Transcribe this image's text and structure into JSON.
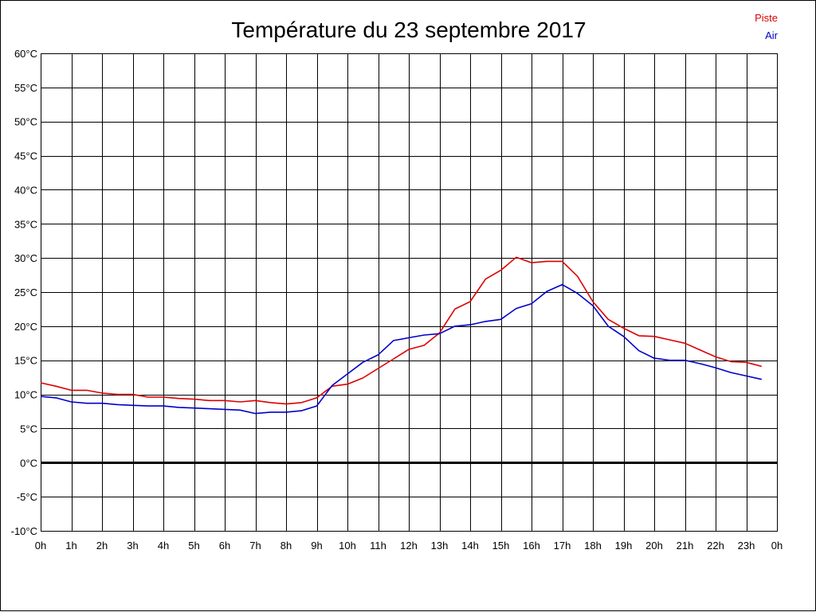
{
  "chart_data": {
    "type": "line",
    "title": "Température du 23 septembre 2017",
    "xlabel": "",
    "ylabel": "",
    "x_tick_labels": [
      "0h",
      "1h",
      "2h",
      "3h",
      "4h",
      "5h",
      "6h",
      "7h",
      "8h",
      "9h",
      "10h",
      "11h",
      "12h",
      "13h",
      "14h",
      "15h",
      "16h",
      "17h",
      "18h",
      "19h",
      "20h",
      "21h",
      "22h",
      "23h",
      "0h"
    ],
    "y_tick_labels": [
      "60°C",
      "55°C",
      "50°C",
      "45°C",
      "40°C",
      "35°C",
      "30°C",
      "25°C",
      "20°C",
      "15°C",
      "10°C",
      "5°C",
      "0°C",
      "-5°C",
      "-10°C"
    ],
    "xlim": [
      0,
      24
    ],
    "ylim": [
      -10,
      60
    ],
    "grid": true,
    "zero_line": true,
    "legend_position": "top-right",
    "x": [
      0,
      0.5,
      1,
      1.5,
      2,
      2.5,
      3,
      3.5,
      4,
      4.5,
      5,
      5.5,
      6,
      6.5,
      7,
      7.5,
      8,
      8.5,
      9,
      9.5,
      10,
      10.5,
      11,
      11.5,
      12,
      12.5,
      13,
      13.5,
      14,
      14.5,
      15,
      15.5,
      16,
      16.5,
      17,
      17.5,
      18,
      18.5,
      19,
      19.5,
      20,
      20.5,
      21,
      21.5,
      22,
      22.5,
      23,
      23.5
    ],
    "series": [
      {
        "name": "Piste",
        "color": "#dd0000",
        "values": [
          11.7,
          11.2,
          10.6,
          10.6,
          10.2,
          10.0,
          10.0,
          9.6,
          9.6,
          9.4,
          9.3,
          9.1,
          9.1,
          8.9,
          9.1,
          8.8,
          8.6,
          8.8,
          9.5,
          11.2,
          11.5,
          12.4,
          13.8,
          15.2,
          16.6,
          17.2,
          19.0,
          22.5,
          23.6,
          26.9,
          28.2,
          30.1,
          29.3,
          29.5,
          29.5,
          27.3,
          23.6,
          21.0,
          19.7,
          18.6,
          18.5,
          18.0,
          17.5,
          16.5,
          15.5,
          14.8,
          14.7,
          14.1
        ]
      },
      {
        "name": "Air",
        "color": "#0000cc",
        "values": [
          9.7,
          9.5,
          8.9,
          8.7,
          8.7,
          8.5,
          8.4,
          8.3,
          8.3,
          8.1,
          8.0,
          7.9,
          7.8,
          7.7,
          7.2,
          7.4,
          7.4,
          7.6,
          8.3,
          11.3,
          13.0,
          14.7,
          15.8,
          17.9,
          18.3,
          18.7,
          18.9,
          20.0,
          20.2,
          20.7,
          21.0,
          22.6,
          23.3,
          25.1,
          26.1,
          24.8,
          23.0,
          20.0,
          18.5,
          16.4,
          15.3,
          15.0,
          15.0,
          14.5,
          13.9,
          13.2,
          12.7,
          12.2
        ]
      }
    ]
  }
}
